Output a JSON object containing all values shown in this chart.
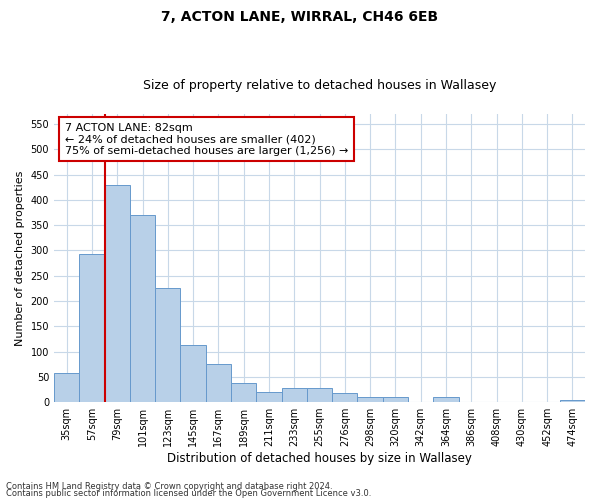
{
  "title": "7, ACTON LANE, WIRRAL, CH46 6EB",
  "subtitle": "Size of property relative to detached houses in Wallasey",
  "xlabel": "Distribution of detached houses by size in Wallasey",
  "ylabel": "Number of detached properties",
  "categories": [
    "35sqm",
    "57sqm",
    "79sqm",
    "101sqm",
    "123sqm",
    "145sqm",
    "167sqm",
    "189sqm",
    "211sqm",
    "233sqm",
    "255sqm",
    "276sqm",
    "298sqm",
    "320sqm",
    "342sqm",
    "364sqm",
    "386sqm",
    "408sqm",
    "430sqm",
    "452sqm",
    "474sqm"
  ],
  "values": [
    57,
    293,
    430,
    370,
    225,
    113,
    76,
    38,
    20,
    28,
    28,
    17,
    10,
    10,
    0,
    10,
    0,
    0,
    0,
    0,
    5
  ],
  "bar_color": "#b8d0e8",
  "bar_edge_color": "#6699cc",
  "vline_color": "#cc0000",
  "annotation_line1": "7 ACTON LANE: 82sqm",
  "annotation_line2": "← 24% of detached houses are smaller (402)",
  "annotation_line3": "75% of semi-detached houses are larger (1,256) →",
  "annotation_box_color": "#cc0000",
  "ylim": [
    0,
    570
  ],
  "yticks": [
    0,
    50,
    100,
    150,
    200,
    250,
    300,
    350,
    400,
    450,
    500,
    550
  ],
  "background_color": "#ffffff",
  "grid_color": "#c8d8e8",
  "footer1": "Contains HM Land Registry data © Crown copyright and database right 2024.",
  "footer2": "Contains public sector information licensed under the Open Government Licence v3.0.",
  "title_fontsize": 10,
  "subtitle_fontsize": 9,
  "xlabel_fontsize": 8.5,
  "ylabel_fontsize": 8,
  "tick_fontsize": 7,
  "annotation_fontsize": 8,
  "footer_fontsize": 6
}
